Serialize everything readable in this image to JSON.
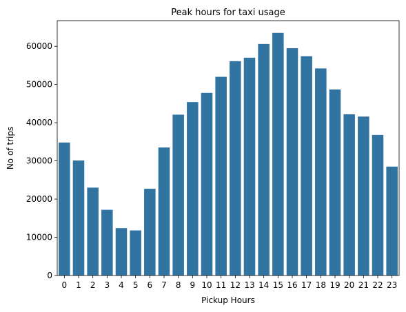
{
  "chart_data": {
    "type": "bar",
    "title": "Peak hours for taxi usage",
    "xlabel": "Pickup Hours",
    "ylabel": "No of trips",
    "categories": [
      "0",
      "1",
      "2",
      "3",
      "4",
      "5",
      "6",
      "7",
      "8",
      "9",
      "10",
      "11",
      "12",
      "13",
      "14",
      "15",
      "16",
      "17",
      "18",
      "19",
      "20",
      "21",
      "22",
      "23"
    ],
    "values": [
      34800,
      30100,
      23000,
      17200,
      12400,
      11800,
      22700,
      33500,
      42100,
      45400,
      47800,
      52000,
      56100,
      57000,
      60600,
      63500,
      59500,
      57400,
      54200,
      48700,
      42200,
      41600,
      36800,
      28500
    ],
    "ylim": [
      0,
      66700
    ],
    "yticks": [
      0,
      10000,
      20000,
      30000,
      40000,
      50000,
      60000
    ],
    "yticklabels": [
      "0",
      "10000",
      "20000",
      "30000",
      "40000",
      "50000",
      "60000"
    ],
    "bar_color": "#3274a1",
    "grid": false,
    "legend": false
  }
}
